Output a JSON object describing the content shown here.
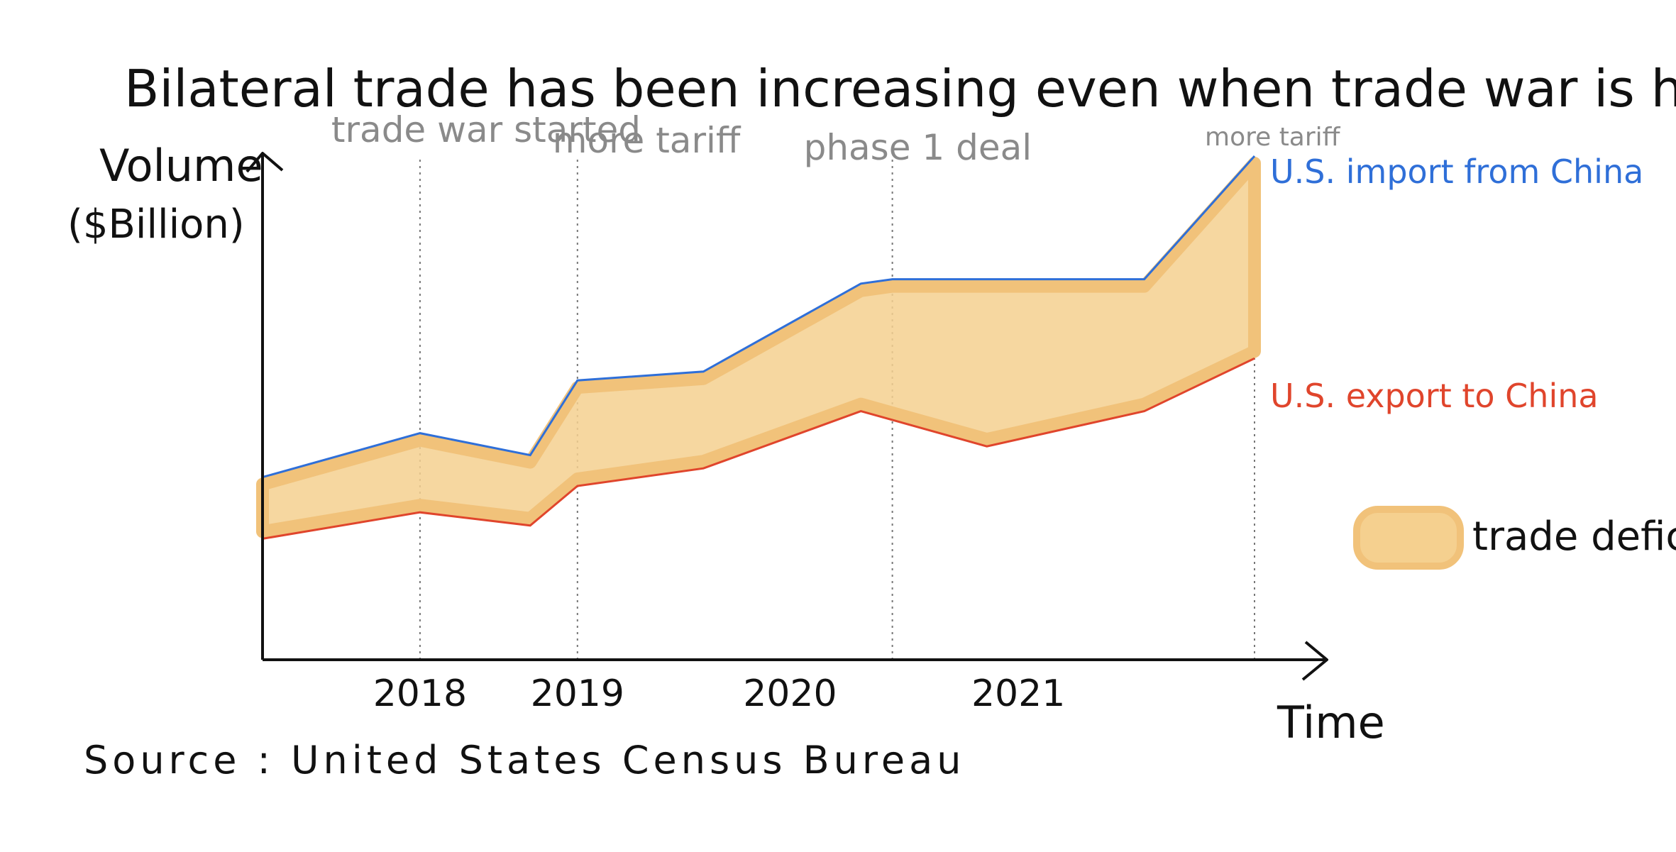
{
  "title": "Bilateral trade has been increasing even when trade war is heatening",
  "source": "Source : United States Census Bureau",
  "chart_data": {
    "type": "area",
    "ylabel": "Volume",
    "ylabel_unit": "($Billion)",
    "xlabel": "Time",
    "x_tick_labels": [
      "2018",
      "2019",
      "2020",
      "2021"
    ],
    "series": [
      {
        "name": "U.S. import from China",
        "color": "#2f6fd8",
        "points": [
          [
            2017.0,
            0.27
          ],
          [
            2018.0,
            0.37
          ],
          [
            2018.7,
            0.32
          ],
          [
            2019.0,
            0.49
          ],
          [
            2019.8,
            0.51
          ],
          [
            2020.8,
            0.71
          ],
          [
            2021.0,
            0.72
          ],
          [
            2022.6,
            0.72
          ],
          [
            2023.3,
            1.0
          ]
        ]
      },
      {
        "name": "U.S. export to China",
        "color": "#e0452c",
        "points": [
          [
            2017.0,
            0.13
          ],
          [
            2018.0,
            0.19
          ],
          [
            2018.7,
            0.16
          ],
          [
            2019.0,
            0.25
          ],
          [
            2019.8,
            0.29
          ],
          [
            2020.8,
            0.42
          ],
          [
            2021.6,
            0.34
          ],
          [
            2022.6,
            0.42
          ],
          [
            2023.3,
            0.54
          ]
        ]
      }
    ],
    "area_between": "trade deficit",
    "area_color": "#f5d08f",
    "legend": {
      "label": "trade deficit",
      "position": "right"
    },
    "annotations": [
      {
        "x": 2018.0,
        "label": "trade war started"
      },
      {
        "x": 2019.0,
        "label": "more tariff"
      },
      {
        "x": 2021.0,
        "label": "phase 1 deal"
      },
      {
        "x": 2023.3,
        "label": "more tariff"
      }
    ],
    "grid": false,
    "style": "hand-drawn sketch"
  }
}
